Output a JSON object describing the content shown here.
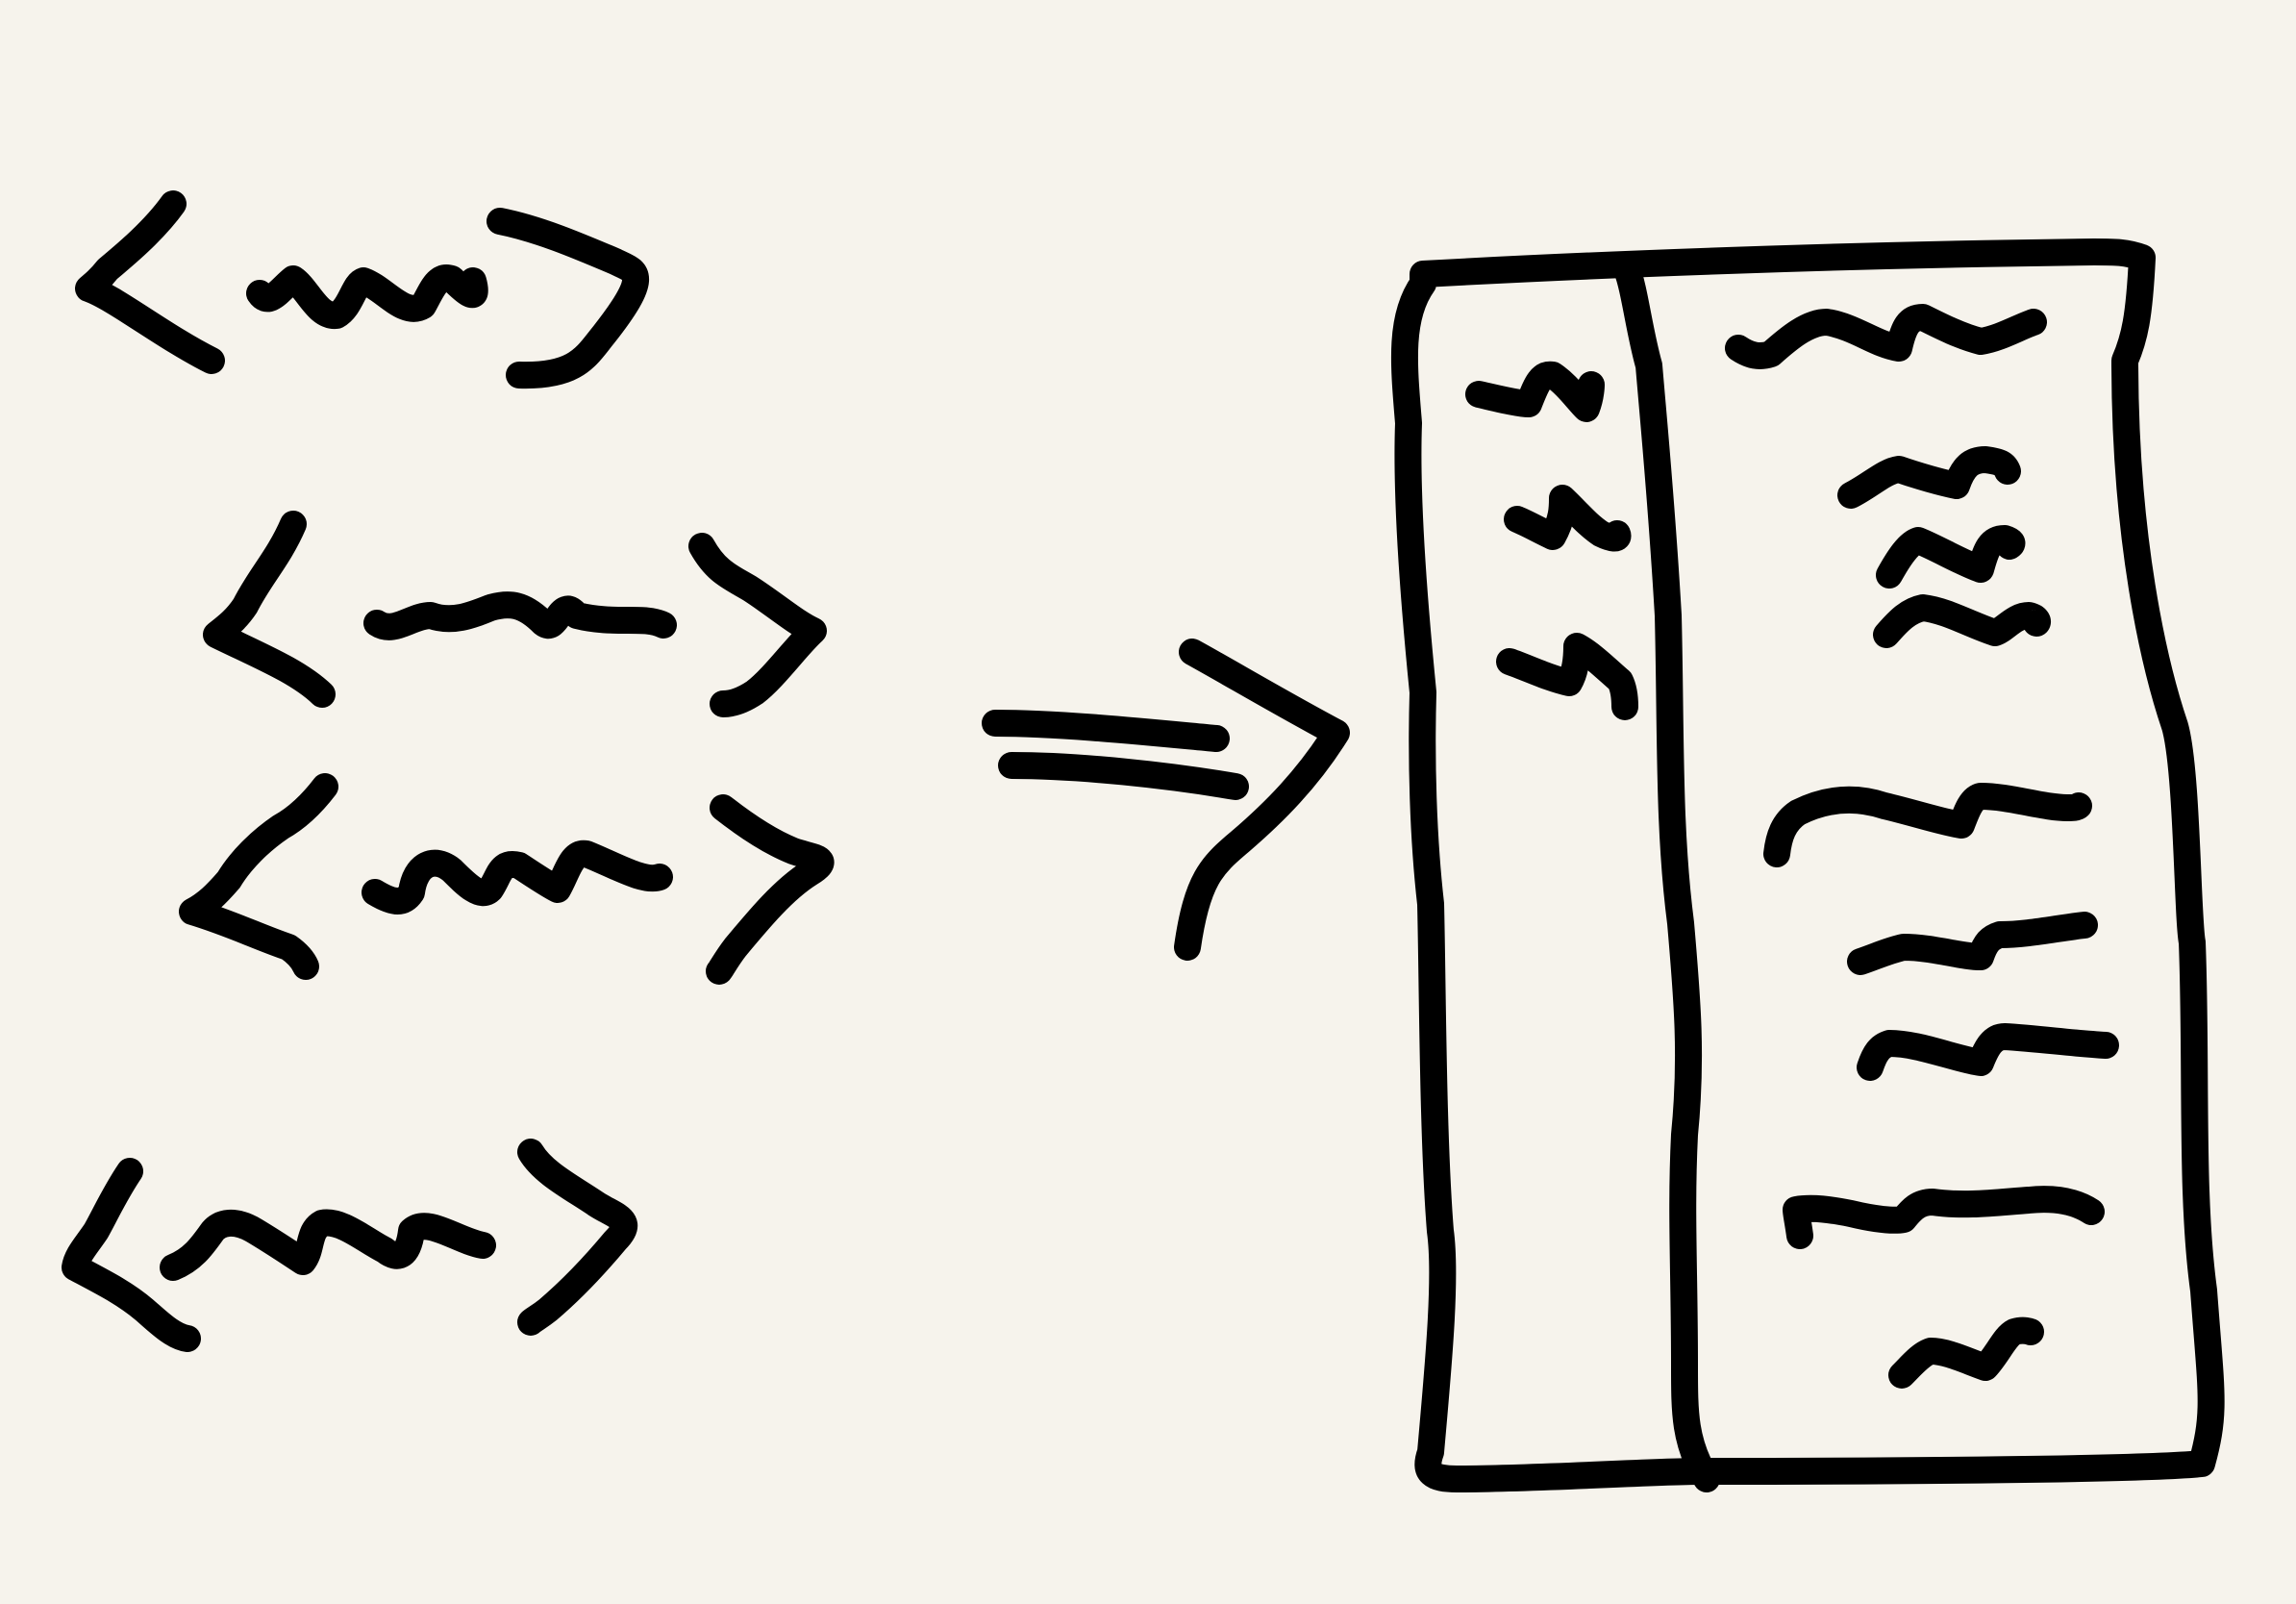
{
  "colors": {
    "background": "#f6f3ec",
    "ink": "#000000"
  },
  "left_group": {
    "snippets": [
      {
        "kind": "angle-bracket-wavy-snippet"
      },
      {
        "kind": "angle-bracket-wavy-snippet"
      },
      {
        "kind": "angle-bracket-wavy-snippet"
      },
      {
        "kind": "angle-bracket-wavy-snippet"
      }
    ]
  },
  "arrow": {
    "direction": "right"
  },
  "document": {
    "columns": 2,
    "left_column_lines": 3,
    "right_column_lines": 10
  }
}
